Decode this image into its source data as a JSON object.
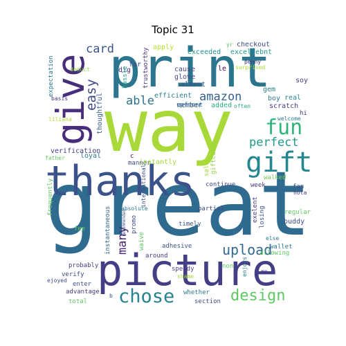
{
  "title": "Topic 31",
  "words": [
    {
      "text": "great",
      "color": "#2e6b8e"
    },
    {
      "text": "way",
      "color": "#a9d938"
    },
    {
      "text": "print",
      "color": "#2b758e"
    },
    {
      "text": "picture",
      "color": "#433e85"
    },
    {
      "text": "thanks",
      "color": "#3b528b"
    },
    {
      "text": "give",
      "color": "#472d7b"
    },
    {
      "text": "gift",
      "color": "#24868e"
    },
    {
      "text": "fun",
      "color": "#2fb47c"
    },
    {
      "text": "chose",
      "color": "#26828e"
    },
    {
      "text": "design",
      "color": "#5ec962"
    },
    {
      "text": "upload",
      "color": "#31688e"
    },
    {
      "text": "perfect",
      "color": "#1f988b"
    },
    {
      "text": "easy",
      "color": "#3e4a89"
    },
    {
      "text": "amazon",
      "color": "#355f8d"
    },
    {
      "text": "able",
      "color": "#2c718e"
    },
    {
      "text": "card",
      "color": "#3b528b"
    },
    {
      "text": "many",
      "color": "#482475"
    },
    {
      "text": "exceeded",
      "color": "#20928c"
    },
    {
      "text": "excellebnt",
      "color": "#1f9a8a"
    },
    {
      "text": "checkout",
      "color": "#3e4989"
    },
    {
      "text": "apply",
      "color": "#b5de2b"
    },
    {
      "text": "far",
      "color": "#3e4989"
    },
    {
      "text": "yr",
      "color": "#5ec962"
    },
    {
      "text": "penny",
      "color": "#46337f"
    },
    {
      "text": "surprised",
      "color": "#addc30"
    },
    {
      "text": "trustworthy",
      "color": "#472f7d"
    },
    {
      "text": "dig",
      "color": "#46327e"
    },
    {
      "text": "cause",
      "color": "#414487"
    },
    {
      "text": "glove",
      "color": "#3f4788"
    },
    {
      "text": "almost",
      "color": "#3b528b"
    },
    {
      "text": "efficient",
      "color": "#287d8e"
    },
    {
      "text": "member",
      "color": "#3e4989"
    },
    {
      "text": "added",
      "color": "#27ad81"
    },
    {
      "text": "often",
      "color": "#22a884"
    },
    {
      "text": "le",
      "color": "#440154"
    },
    {
      "text": "gem",
      "color": "#25848e"
    },
    {
      "text": "soy",
      "color": "#423f85"
    },
    {
      "text": "boy",
      "color": "#2a788e"
    },
    {
      "text": "real",
      "color": "#24868e"
    },
    {
      "text": "scratch",
      "color": "#443a83"
    },
    {
      "text": "hi",
      "color": "#453781"
    },
    {
      "text": "welcome",
      "color": "#2a788e"
    },
    {
      "text": "deduct",
      "color": "#8fd744"
    },
    {
      "text": "hassle",
      "color": "#20a486"
    },
    {
      "text": "expectation",
      "color": "#2a788e"
    },
    {
      "text": "basis",
      "color": "#46337f"
    },
    {
      "text": "liliana",
      "color": "#addc30"
    },
    {
      "text": "thoughtful",
      "color": "#365c8d"
    },
    {
      "text": "upfront",
      "color": "#2a788e"
    },
    {
      "text": "verification",
      "color": "#433e85"
    },
    {
      "text": "loyal",
      "color": "#2d718e"
    },
    {
      "text": "father",
      "color": "#5ec962"
    },
    {
      "text": "manner",
      "color": "#3e4989"
    },
    {
      "text": "c",
      "color": "#440154"
    },
    {
      "text": "instantly",
      "color": "#a0da39"
    },
    {
      "text": "international",
      "color": "#3e4989"
    },
    {
      "text": "sale",
      "color": "#a8db34"
    },
    {
      "text": "giftcards",
      "color": "#8fd744"
    },
    {
      "text": "continue",
      "color": "#3e4989"
    },
    {
      "text": "walked",
      "color": "#70cf57"
    },
    {
      "text": "week",
      "color": "#453781"
    },
    {
      "text": "fan",
      "color": "#3b528b"
    },
    {
      "text": "hola",
      "color": "#46337f"
    },
    {
      "text": "frequently",
      "color": "#5ec962"
    },
    {
      "text": "absolute",
      "color": "#2a788e"
    },
    {
      "text": "partial",
      "color": "#3e4989"
    },
    {
      "text": "exelent",
      "color": "#433e85"
    },
    {
      "text": "regular",
      "color": "#5ec962"
    },
    {
      "text": "losing",
      "color": "#3b528b"
    },
    {
      "text": "buddy",
      "color": "#3e4989"
    },
    {
      "text": "fee",
      "color": "#5ec962"
    },
    {
      "text": "promo",
      "color": "#3e4989"
    },
    {
      "text": "timely",
      "color": "#3b528b"
    },
    {
      "text": "instantaneous",
      "color": "#31688e"
    },
    {
      "text": "waive",
      "color": "#5ec962"
    },
    {
      "text": "adhesive",
      "color": "#3b528b"
    },
    {
      "text": "else",
      "color": "#2a788e"
    },
    {
      "text": "wallet",
      "color": "#2a788e"
    },
    {
      "text": "allowing",
      "color": "#5ec962"
    },
    {
      "text": "probably",
      "color": "#433e85"
    },
    {
      "text": "around",
      "color": "#453781"
    },
    {
      "text": "recommended",
      "color": "#3b528b"
    },
    {
      "text": "verify",
      "color": "#3e4989"
    },
    {
      "text": "speedy",
      "color": "#433e85"
    },
    {
      "text": "enjoys",
      "color": "#2a788e"
    },
    {
      "text": "mp",
      "color": "#453781"
    },
    {
      "text": "ejoyed",
      "color": "#3e4989"
    },
    {
      "text": "enter",
      "color": "#3b528b"
    },
    {
      "text": "shame",
      "color": "#a8db34"
    },
    {
      "text": "non",
      "color": "#5ec962"
    },
    {
      "text": "advantage",
      "color": "#433e85"
    },
    {
      "text": "whether",
      "color": "#2a788e"
    },
    {
      "text": "total",
      "color": "#5ec962"
    },
    {
      "text": "b",
      "color": "#3b528b"
    },
    {
      "text": "section",
      "color": "#3e4989"
    }
  ]
}
